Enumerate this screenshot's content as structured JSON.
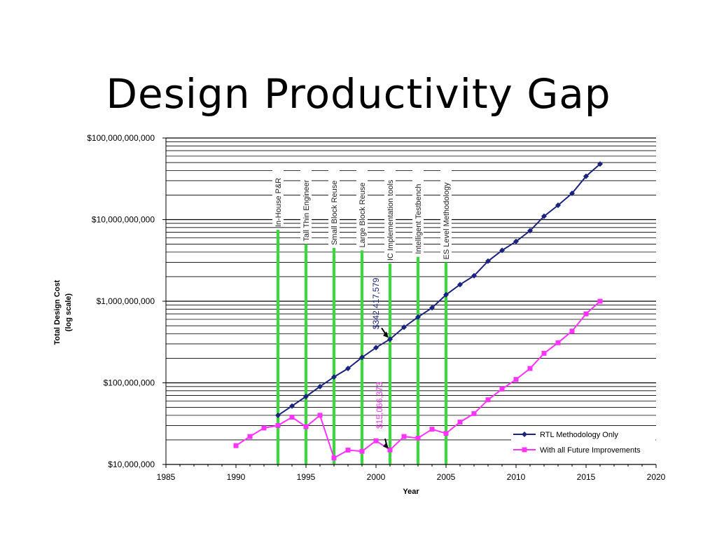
{
  "slide": {
    "title": "Design Productivity Gap"
  },
  "chart_data": {
    "type": "line",
    "title": "",
    "xlabel": "Year",
    "ylabel": "Total Design Cost",
    "ylabel_sub": "(log scale)",
    "xlim": [
      1985,
      2020
    ],
    "ylim": [
      10000000,
      100000000000
    ],
    "y_scale": "log",
    "x_ticks": [
      "1985",
      "1990",
      "1995",
      "2000",
      "2005",
      "2010",
      "2015",
      "2020"
    ],
    "y_ticks": [
      "$10,000,000",
      "$100,000,000",
      "$1,000,000,000",
      "$10,000,000,000",
      "$100,000,000,000"
    ],
    "grid": "horizontal",
    "legend_position": "bottom-right",
    "colors": {
      "rtl": "#1a237e",
      "future": "#ff33ff",
      "milestone": "#33dd33"
    },
    "series": [
      {
        "name": "RTL Methodology Only",
        "marker": "diamond",
        "x": [
          1993,
          1994,
          1995,
          1996,
          1997,
          1998,
          1999,
          2000,
          2001,
          2002,
          2003,
          2004,
          2005,
          2006,
          2007,
          2008,
          2009,
          2010,
          2011,
          2012,
          2013,
          2014,
          2015,
          2016
        ],
        "values": [
          40000000,
          52000000,
          68000000,
          90000000,
          118000000,
          150000000,
          205000000,
          270000000,
          342417579,
          480000000,
          640000000,
          830000000,
          1200000000,
          1600000000,
          2050000000,
          3100000000,
          4200000000,
          5400000000,
          7300000000,
          11000000000,
          15000000000,
          21000000000,
          34000000000,
          48000000000
        ]
      },
      {
        "name": "With all Future Improvements",
        "marker": "square",
        "x": [
          1990,
          1991,
          1992,
          1993,
          1994,
          1995,
          1996,
          1997,
          1998,
          1999,
          2000,
          2001,
          2002,
          2003,
          2004,
          2005,
          2006,
          2007,
          2008,
          2009,
          2010,
          2011,
          2012,
          2013,
          2014,
          2015,
          2016
        ],
        "values": [
          17000000,
          22000000,
          28000000,
          30000000,
          38000000,
          29000000,
          40000000,
          12000000,
          15000000,
          14500000,
          19500000,
          15066373,
          22000000,
          21000000,
          27000000,
          24000000,
          33000000,
          42000000,
          62000000,
          84000000,
          110000000,
          150000000,
          230000000,
          310000000,
          430000000,
          700000000,
          1000000000
        ]
      }
    ],
    "milestones": [
      {
        "year": 1993,
        "label": "In-House P&R",
        "top": 7500000000
      },
      {
        "year": 1995,
        "label": "Tall Thin Engineer",
        "top": 5000000000
      },
      {
        "year": 1997,
        "label": "Small Block Reuse",
        "top": 4500000000
      },
      {
        "year": 1999,
        "label": "Large Block Reuse",
        "top": 4200000000
      },
      {
        "year": 2001,
        "label": "IC Implementation tools",
        "top": 2900000000
      },
      {
        "year": 2003,
        "label": "Intelligent Testbench",
        "top": 3500000000
      },
      {
        "year": 2005,
        "label": "ES Level Methodology",
        "top": 3000000000
      }
    ],
    "annotations": [
      {
        "text": "$342,417,579",
        "series": 0
      },
      {
        "text": "$15,066,373",
        "series": 1
      }
    ]
  }
}
